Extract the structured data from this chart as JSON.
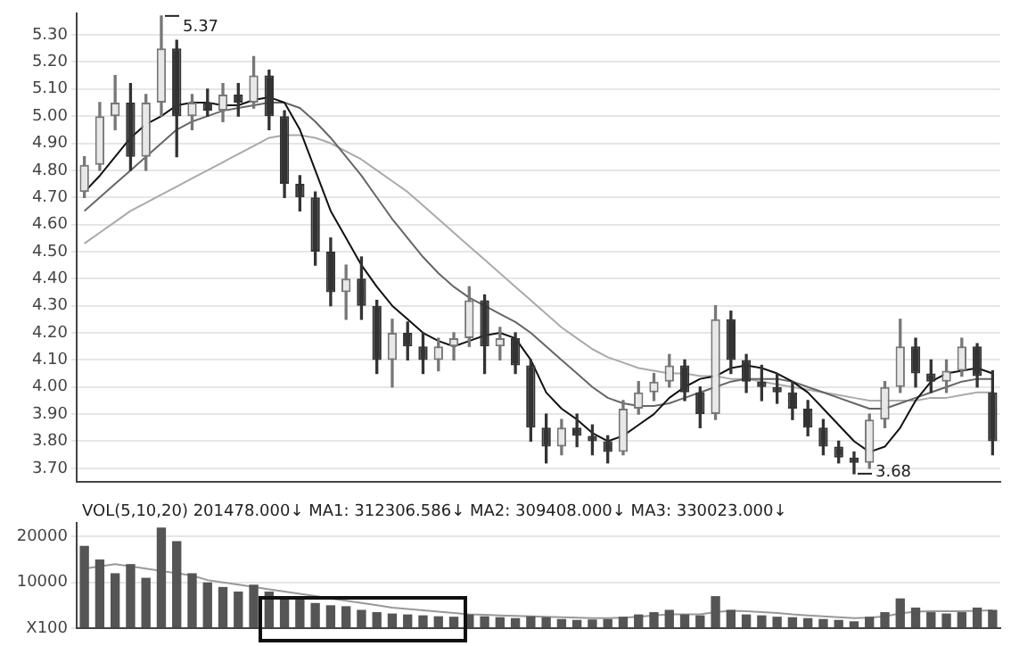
{
  "chart_data": [
    {
      "type": "candlestick",
      "colors": [
        "#777777",
        "#777777",
        "#777777",
        "#333333",
        "#777777",
        "#777777",
        "#333333",
        "#777777",
        "#333333",
        "#777777",
        "#333333",
        "#777777",
        "#333333",
        "#333333",
        "#333333",
        "#333333",
        "#333333",
        "#777777",
        "#333333",
        "#333333",
        "#777777",
        "#333333",
        "#333333",
        "#777777",
        "#777777",
        "#777777",
        "#333333",
        "#777777",
        "#333333",
        "#333333",
        "#333333",
        "#777777",
        "#333333",
        "#333333",
        "#333333",
        "#777777",
        "#777777",
        "#777777",
        "#777777",
        "#333333",
        "#333333",
        "#777777",
        "#333333",
        "#333333",
        "#333333",
        "#333333",
        "#333333",
        "#333333",
        "#333333",
        "#333333",
        "#333333",
        "#777777",
        "#777777",
        "#777777",
        "#333333",
        "#333333",
        "#777777",
        "#777777",
        "#333333",
        "#333333"
      ],
      "categories": [
        null,
        null,
        null,
        null,
        null,
        null,
        null,
        null,
        null,
        null,
        null,
        null,
        null,
        null,
        null,
        null,
        null,
        null,
        null,
        null,
        null,
        null,
        null,
        null,
        null,
        null,
        null,
        null,
        null,
        null,
        null,
        null,
        null,
        null,
        null,
        null,
        null,
        null,
        null,
        null,
        null,
        null,
        null,
        null,
        null,
        null,
        null,
        null,
        null,
        null,
        null,
        null,
        null,
        null,
        null,
        null,
        null,
        null,
        null,
        null
      ],
      "ohlc": [
        [
          4.72,
          4.85,
          4.7,
          4.82
        ],
        [
          4.82,
          5.05,
          4.8,
          5.0
        ],
        [
          5.0,
          5.15,
          4.95,
          5.05
        ],
        [
          5.05,
          5.12,
          4.8,
          4.85
        ],
        [
          4.85,
          5.08,
          4.8,
          5.05
        ],
        [
          5.05,
          5.37,
          5.0,
          5.25
        ],
        [
          5.25,
          5.28,
          4.85,
          5.0
        ],
        [
          5.0,
          5.08,
          4.95,
          5.05
        ],
        [
          5.05,
          5.1,
          5.0,
          5.02
        ],
        [
          5.02,
          5.12,
          4.98,
          5.08
        ],
        [
          5.08,
          5.12,
          5.0,
          5.05
        ],
        [
          5.05,
          5.22,
          5.03,
          5.15
        ],
        [
          5.15,
          5.17,
          4.95,
          5.0
        ],
        [
          5.0,
          5.02,
          4.7,
          4.75
        ],
        [
          4.75,
          4.78,
          4.65,
          4.7
        ],
        [
          4.7,
          4.72,
          4.45,
          4.5
        ],
        [
          4.5,
          4.55,
          4.3,
          4.35
        ],
        [
          4.35,
          4.45,
          4.25,
          4.4
        ],
        [
          4.4,
          4.48,
          4.25,
          4.3
        ],
        [
          4.3,
          4.32,
          4.05,
          4.1
        ],
        [
          4.1,
          4.25,
          4.0,
          4.2
        ],
        [
          4.2,
          4.24,
          4.1,
          4.15
        ],
        [
          4.15,
          4.2,
          4.05,
          4.1
        ],
        [
          4.1,
          4.18,
          4.06,
          4.15
        ],
        [
          4.15,
          4.2,
          4.1,
          4.18
        ],
        [
          4.18,
          4.37,
          4.15,
          4.32
        ],
        [
          4.32,
          4.34,
          4.05,
          4.15
        ],
        [
          4.15,
          4.22,
          4.1,
          4.18
        ],
        [
          4.18,
          4.2,
          4.05,
          4.08
        ],
        [
          4.08,
          4.1,
          3.8,
          3.85
        ],
        [
          3.85,
          3.9,
          3.72,
          3.78
        ],
        [
          3.78,
          3.88,
          3.75,
          3.85
        ],
        [
          3.85,
          3.9,
          3.78,
          3.82
        ],
        [
          3.82,
          3.86,
          3.75,
          3.8
        ],
        [
          3.8,
          3.82,
          3.72,
          3.76
        ],
        [
          3.76,
          3.95,
          3.75,
          3.92
        ],
        [
          3.92,
          4.02,
          3.9,
          3.98
        ],
        [
          3.98,
          4.05,
          3.95,
          4.02
        ],
        [
          4.02,
          4.12,
          4.0,
          4.08
        ],
        [
          4.08,
          4.1,
          3.95,
          3.98
        ],
        [
          3.98,
          4.0,
          3.85,
          3.9
        ],
        [
          3.9,
          4.3,
          3.88,
          4.25
        ],
        [
          4.25,
          4.28,
          4.05,
          4.1
        ],
        [
          4.1,
          4.12,
          3.98,
          4.02
        ],
        [
          4.02,
          4.08,
          3.95,
          4.0
        ],
        [
          4.0,
          4.05,
          3.94,
          3.98
        ],
        [
          3.98,
          4.02,
          3.88,
          3.92
        ],
        [
          3.92,
          3.95,
          3.82,
          3.85
        ],
        [
          3.85,
          3.88,
          3.75,
          3.78
        ],
        [
          3.78,
          3.8,
          3.72,
          3.74
        ],
        [
          3.74,
          3.76,
          3.68,
          3.72
        ],
        [
          3.72,
          3.9,
          3.7,
          3.88
        ],
        [
          3.88,
          4.02,
          3.85,
          4.0
        ],
        [
          4.0,
          4.25,
          3.98,
          4.15
        ],
        [
          4.15,
          4.18,
          4.0,
          4.05
        ],
        [
          4.05,
          4.1,
          3.98,
          4.02
        ],
        [
          4.02,
          4.1,
          3.98,
          4.06
        ],
        [
          4.06,
          4.18,
          4.04,
          4.15
        ],
        [
          4.15,
          4.16,
          4.0,
          4.04
        ],
        [
          3.98,
          4.06,
          3.75,
          3.8
        ]
      ],
      "series": [
        {
          "type": "line",
          "color": "#111111",
          "values": [
            4.72,
            4.78,
            4.85,
            4.92,
            4.97,
            5.0,
            5.04,
            5.05,
            5.05,
            5.04,
            5.04,
            5.06,
            5.07,
            5.05,
            4.95,
            4.8,
            4.65,
            4.55,
            4.45,
            4.37,
            4.3,
            4.25,
            4.2,
            4.17,
            4.15,
            4.17,
            4.19,
            4.2,
            4.18,
            4.1,
            3.98,
            3.92,
            3.88,
            3.83,
            3.8,
            3.82,
            3.86,
            3.9,
            3.96,
            4.0,
            4.03,
            4.04,
            4.07,
            4.08,
            4.07,
            4.05,
            4.02,
            3.98,
            3.92,
            3.86,
            3.8,
            3.76,
            3.78,
            3.85,
            3.95,
            4.02,
            4.05,
            4.06,
            4.07,
            4.05
          ]
        },
        {
          "type": "line",
          "color": "#666666",
          "values": [
            4.65,
            4.7,
            4.75,
            4.8,
            4.85,
            4.9,
            4.95,
            4.98,
            5.0,
            5.02,
            5.03,
            5.04,
            5.05,
            5.05,
            5.03,
            4.98,
            4.92,
            4.85,
            4.78,
            4.7,
            4.62,
            4.55,
            4.48,
            4.42,
            4.37,
            4.33,
            4.3,
            4.27,
            4.24,
            4.2,
            4.15,
            4.1,
            4.05,
            4.0,
            3.96,
            3.94,
            3.93,
            3.93,
            3.94,
            3.96,
            3.98,
            4.0,
            4.02,
            4.03,
            4.03,
            4.03,
            4.02,
            4.0,
            3.98,
            3.96,
            3.94,
            3.92,
            3.92,
            3.94,
            3.96,
            3.98,
            4.0,
            4.02,
            4.03,
            4.03
          ]
        },
        {
          "type": "line",
          "color": "#aaaaaa",
          "values": [
            4.53,
            4.57,
            4.61,
            4.65,
            4.68,
            4.71,
            4.74,
            4.77,
            4.8,
            4.83,
            4.86,
            4.89,
            4.92,
            4.93,
            4.93,
            4.92,
            4.9,
            4.87,
            4.84,
            4.8,
            4.76,
            4.72,
            4.67,
            4.62,
            4.57,
            4.52,
            4.47,
            4.42,
            4.37,
            4.32,
            4.27,
            4.22,
            4.18,
            4.14,
            4.11,
            4.09,
            4.07,
            4.06,
            4.05,
            4.05,
            4.04,
            4.04,
            4.03,
            4.03,
            4.02,
            4.01,
            4.0,
            3.99,
            3.98,
            3.97,
            3.96,
            3.95,
            3.95,
            3.95,
            3.95,
            3.96,
            3.96,
            3.97,
            3.98,
            3.98
          ]
        }
      ],
      "ylim": [
        3.65,
        5.38
      ],
      "yticks": [
        {
          "value": 3.7,
          "label": "3.70"
        },
        {
          "value": 3.8,
          "label": "3.80"
        },
        {
          "value": 3.9,
          "label": "3.90"
        },
        {
          "value": 4.0,
          "label": "4.00"
        },
        {
          "value": 4.1,
          "label": "4.10"
        },
        {
          "value": 4.2,
          "label": "4.20"
        },
        {
          "value": 4.3,
          "label": "4.30"
        },
        {
          "value": 4.4,
          "label": "4.40"
        },
        {
          "value": 4.5,
          "label": "4.50"
        },
        {
          "value": 4.6,
          "label": "4.60"
        },
        {
          "value": 4.7,
          "label": "4.70"
        },
        {
          "value": 4.8,
          "label": "4.80"
        },
        {
          "value": 4.9,
          "label": "4.90"
        },
        {
          "value": 5.0,
          "label": "5.00"
        },
        {
          "value": 5.1,
          "label": "5.10"
        },
        {
          "value": 5.2,
          "label": "5.20"
        },
        {
          "value": 5.3,
          "label": "5.30"
        }
      ],
      "grid": "y",
      "tick_labels": "y",
      "annotations": [
        "5.37",
        "3.68"
      ]
    },
    {
      "type": "bar",
      "title": "VOL(5,10,20) 201478.000↓ MA1: 312306.586↓ MA2: 309408.000↓ MA3: 330023.000↓",
      "categories": [
        null,
        null,
        null,
        null,
        null,
        null,
        null,
        null,
        null,
        null,
        null,
        null,
        null,
        null,
        null,
        null,
        null,
        null,
        null,
        null,
        null,
        null,
        null,
        null,
        null,
        null,
        null,
        null,
        null,
        null,
        null,
        null,
        null,
        null,
        null,
        null,
        null,
        null,
        null,
        null,
        null,
        null,
        null,
        null,
        null,
        null,
        null,
        null,
        null,
        null,
        null,
        null,
        null,
        null,
        null,
        null,
        null,
        null,
        null,
        null
      ],
      "series": [
        {
          "type": "bar",
          "color": "#555555",
          "values": [
            18000,
            15000,
            12000,
            14000,
            11000,
            22000,
            19000,
            12000,
            10000,
            9000,
            8000,
            9500,
            8000,
            7000,
            6500,
            5500,
            5000,
            4800,
            4000,
            3500,
            3200,
            3000,
            2800,
            2600,
            2500,
            3000,
            2600,
            2400,
            2200,
            2600,
            2400,
            2000,
            1800,
            1900,
            2000,
            2500,
            3000,
            3500,
            4000,
            3000,
            2800,
            7000,
            4000,
            3000,
            2800,
            2500,
            2400,
            2200,
            2000,
            1800,
            1500,
            2500,
            3500,
            6500,
            4500,
            3500,
            3200,
            3500,
            4500,
            4000
          ]
        },
        {
          "type": "line",
          "color": "#999999",
          "values": [
            13000,
            13500,
            14000,
            13500,
            13000,
            12500,
            12000,
            11500,
            10500,
            10000,
            9500,
            9000,
            8500,
            8000,
            7500,
            7000,
            6500,
            6000,
            5500,
            5000,
            4500,
            4200,
            3900,
            3600,
            3300,
            3000,
            2900,
            2800,
            2700,
            2600,
            2500,
            2400,
            2300,
            2200,
            2200,
            2300,
            2500,
            2800,
            3000,
            3000,
            3000,
            3500,
            3800,
            3700,
            3500,
            3300,
            3000,
            2800,
            2600,
            2400,
            2200,
            2300,
            2600,
            3200,
            3600,
            3700,
            3700,
            3700,
            3800,
            3900
          ]
        }
      ],
      "ylim": [
        0,
        23000
      ],
      "yticks": [
        {
          "value": 0,
          "label": "X100"
        },
        10000,
        20000
      ],
      "grid": "y",
      "tick_labels": "y"
    }
  ]
}
